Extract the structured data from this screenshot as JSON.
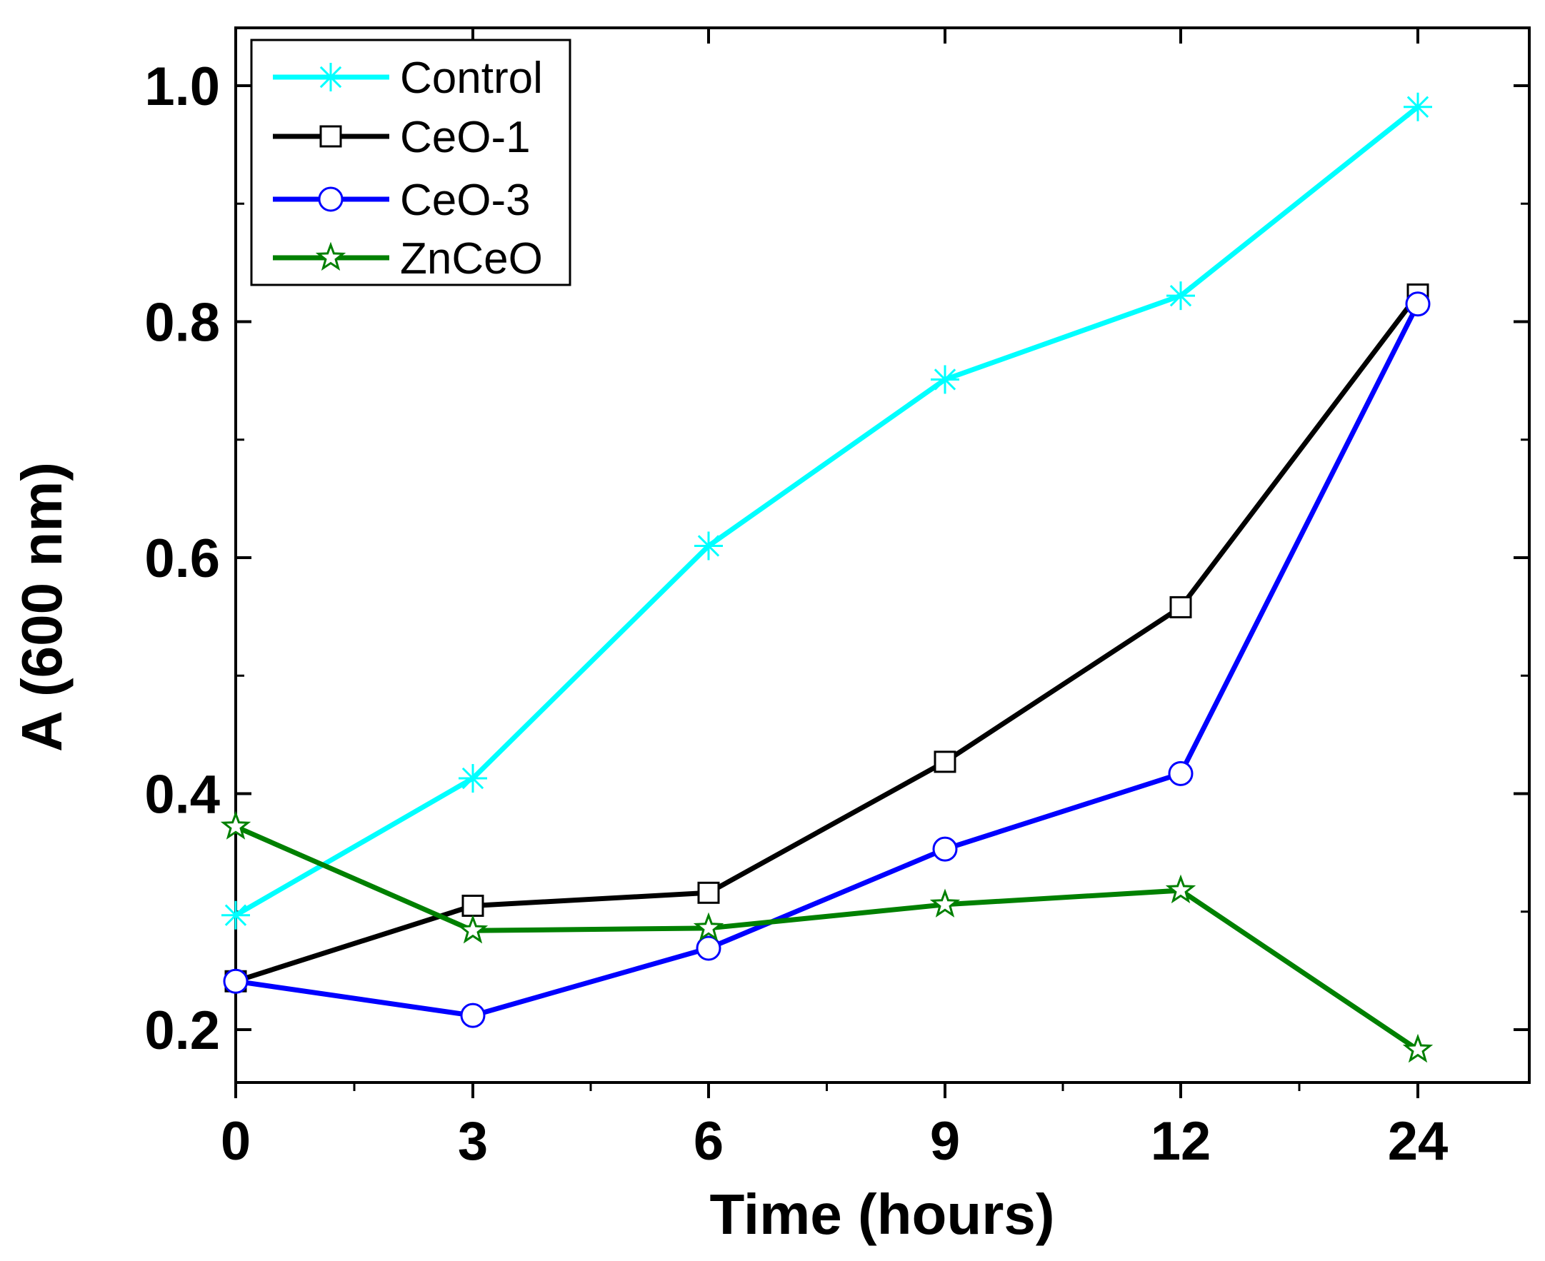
{
  "chart_data": {
    "type": "line",
    "title": "",
    "xlabel": "Time (hours)",
    "ylabel": "A (600 nm)",
    "categories": [
      "0",
      "3",
      "6",
      "9",
      "12",
      "24"
    ],
    "ylim": [
      0.15,
      1.05
    ],
    "yticks": [
      {
        "value": 0.2,
        "label": "0.2"
      },
      {
        "value": 0.4,
        "label": "0.4"
      },
      {
        "value": 0.6,
        "label": "0.6"
      },
      {
        "value": 0.8,
        "label": "0.8"
      },
      {
        "value": 1.0,
        "label": "1.0"
      }
    ],
    "yminor_ticks": [
      0.3,
      0.5,
      0.7,
      0.9
    ],
    "grid": false,
    "legend_position": "top-left",
    "series": [
      {
        "name": "Control",
        "color": "#00ffff",
        "marker": "asterisk",
        "values": [
          0.297,
          0.413,
          0.61,
          0.751,
          0.822,
          0.982
        ]
      },
      {
        "name": "CeO-1",
        "color": "#000000",
        "marker": "square",
        "values": [
          0.241,
          0.305,
          0.316,
          0.427,
          0.558,
          0.823
        ]
      },
      {
        "name": "CeO-3",
        "color": "#0000ff",
        "marker": "circle",
        "values": [
          0.241,
          0.212,
          0.269,
          0.353,
          0.417,
          0.815
        ]
      },
      {
        "name": "ZnCeO",
        "color": "#008000",
        "marker": "star",
        "values": [
          0.372,
          0.284,
          0.286,
          0.306,
          0.318,
          0.183
        ]
      }
    ]
  }
}
